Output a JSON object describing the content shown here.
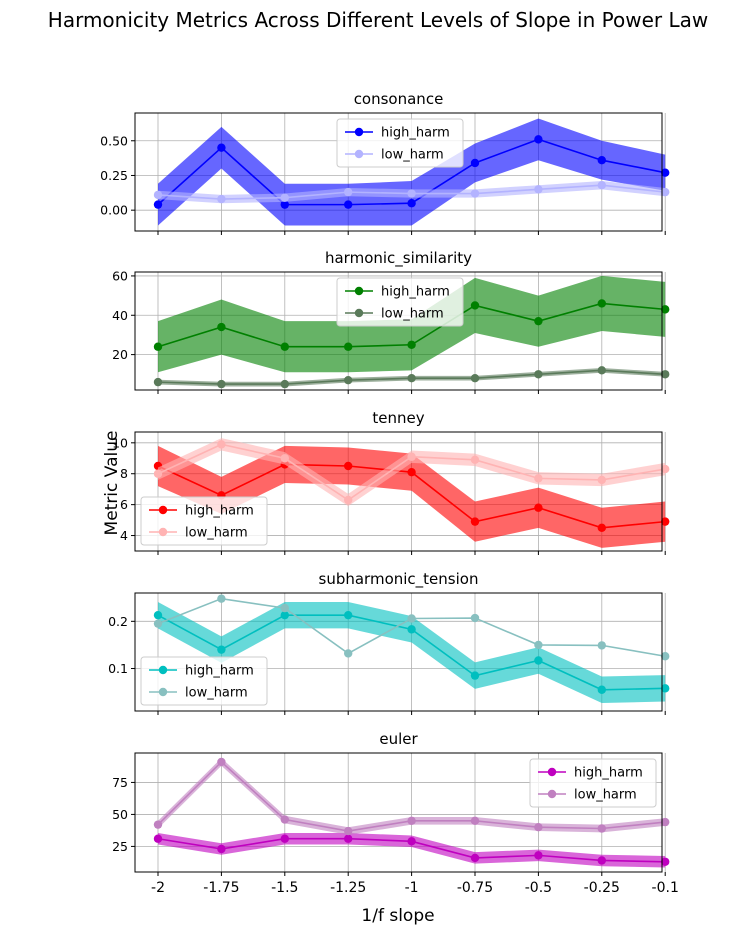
{
  "figure": {
    "title": "Harmonicity Metrics Across Different Levels of Slope in Power Law",
    "ylabel": "Metric Value",
    "xlabel": "1/f slope"
  },
  "chart_data": [
    {
      "type": "line",
      "title": "consonance",
      "categories": [
        "-2",
        "-1.75",
        "-1.5",
        "-1.25",
        "-1",
        "-0.75",
        "-0.5",
        "-0.25",
        "-0.1"
      ],
      "ylim": [
        -0.15,
        0.7
      ],
      "yticks": [
        0.0,
        0.25,
        0.5
      ],
      "ytick_labels": [
        "0.00",
        "0.25",
        "0.50"
      ],
      "grid": true,
      "legend": "top-center",
      "series": [
        {
          "name": "high_harm",
          "color": "#0000ff",
          "fill": "#0000ff",
          "values": [
            0.04,
            0.45,
            0.04,
            0.04,
            0.05,
            0.34,
            0.51,
            0.36,
            0.27
          ],
          "band": [
            0.15,
            0.15,
            0.15,
            0.15,
            0.16,
            0.14,
            0.15,
            0.14,
            0.13
          ]
        },
        {
          "name": "low_harm",
          "color": "#b3b3ff",
          "fill": "#b3b3ff",
          "values": [
            0.11,
            0.08,
            0.09,
            0.13,
            0.12,
            0.12,
            0.15,
            0.18,
            0.13
          ],
          "band": [
            0.03,
            0.03,
            0.03,
            0.03,
            0.03,
            0.03,
            0.03,
            0.03,
            0.03
          ]
        }
      ]
    },
    {
      "type": "line",
      "title": "harmonic_similarity",
      "categories": [
        "-2",
        "-1.75",
        "-1.5",
        "-1.25",
        "-1",
        "-0.75",
        "-0.5",
        "-0.25",
        "-0.1"
      ],
      "ylim": [
        2,
        62
      ],
      "yticks": [
        20,
        40,
        60
      ],
      "ytick_labels": [
        "20",
        "40",
        "60"
      ],
      "grid": true,
      "legend": "top-center",
      "series": [
        {
          "name": "high_harm",
          "color": "#008000",
          "fill": "#008000",
          "values": [
            24,
            34,
            24,
            24,
            25,
            45,
            37,
            46,
            43
          ],
          "band": [
            13,
            14,
            13,
            13,
            13,
            14,
            13,
            14,
            14
          ]
        },
        {
          "name": "low_harm",
          "color": "#5a7a5a",
          "fill": "#5a7a5a",
          "values": [
            6,
            5,
            5,
            7,
            8,
            8,
            10,
            12,
            10
          ],
          "band": [
            1.2,
            1.2,
            1.2,
            1.2,
            1.2,
            1.2,
            1.2,
            1.2,
            1.2
          ]
        }
      ]
    },
    {
      "type": "line",
      "title": "tenney",
      "categories": [
        "-2",
        "-1.75",
        "-1.5",
        "-1.25",
        "-1",
        "-0.75",
        "-0.5",
        "-0.25",
        "-0.1"
      ],
      "ylim": [
        3,
        10.7
      ],
      "yticks": [
        4,
        6,
        8,
        10
      ],
      "ytick_labels": [
        "4",
        "6",
        "8",
        "10"
      ],
      "grid": true,
      "legend": "bottom-left",
      "series": [
        {
          "name": "high_harm",
          "color": "#ff0000",
          "fill": "#ff0000",
          "values": [
            8.5,
            6.6,
            8.6,
            8.5,
            8.1,
            4.9,
            5.8,
            4.5,
            4.9
          ],
          "band": [
            1.3,
            1.2,
            1.2,
            1.2,
            1.2,
            1.3,
            1.3,
            1.3,
            1.3
          ]
        },
        {
          "name": "low_harm",
          "color": "#ffb3b3",
          "fill": "#ffb3b3",
          "values": [
            8.0,
            9.9,
            9.0,
            6.3,
            9.1,
            8.9,
            7.7,
            7.6,
            8.3
          ],
          "band": [
            0.4,
            0.4,
            0.4,
            0.4,
            0.4,
            0.4,
            0.4,
            0.4,
            0.4
          ]
        }
      ]
    },
    {
      "type": "line",
      "title": "subharmonic_tension",
      "categories": [
        "-2",
        "-1.75",
        "-1.5",
        "-1.25",
        "-1",
        "-0.75",
        "-0.5",
        "-0.25",
        "-0.1"
      ],
      "ylim": [
        0.01,
        0.26
      ],
      "yticks": [
        0.1,
        0.2
      ],
      "ytick_labels": [
        "0.1",
        "0.2"
      ],
      "grid": true,
      "legend": "bottom-left",
      "series": [
        {
          "name": "high_harm",
          "color": "#00bfbf",
          "fill": "#00bfbf",
          "values": [
            0.213,
            0.14,
            0.213,
            0.213,
            0.183,
            0.085,
            0.117,
            0.055,
            0.058
          ],
          "band": [
            0.028,
            0.028,
            0.028,
            0.028,
            0.028,
            0.028,
            0.028,
            0.028,
            0.028
          ]
        },
        {
          "name": "low_harm",
          "color": "#88c0c0",
          "fill": "#88c0c0",
          "values": [
            0.195,
            0.248,
            0.228,
            0.132,
            0.206,
            0.207,
            0.15,
            0.149,
            0.126
          ],
          "band": [
            0,
            0,
            0,
            0,
            0,
            0,
            0,
            0,
            0
          ]
        }
      ]
    },
    {
      "type": "line",
      "title": "euler",
      "categories": [
        "-2",
        "-1.75",
        "-1.5",
        "-1.25",
        "-1",
        "-0.75",
        "-0.5",
        "-0.25",
        "-0.1"
      ],
      "ylim": [
        5,
        98
      ],
      "yticks": [
        25,
        50,
        75
      ],
      "ytick_labels": [
        "25",
        "50",
        "75"
      ],
      "grid": true,
      "legend": "top-right",
      "series": [
        {
          "name": "high_harm",
          "color": "#bf00bf",
          "fill": "#bf00bf",
          "values": [
            31,
            23,
            31,
            31,
            29,
            16,
            18,
            14,
            13
          ],
          "band": [
            4.5,
            4.5,
            4.5,
            4.5,
            4.5,
            4.5,
            4.5,
            4.5,
            4.5
          ]
        },
        {
          "name": "low_harm",
          "color": "#c080c0",
          "fill": "#c080c0",
          "values": [
            42,
            91,
            46,
            37,
            45,
            45,
            40,
            39,
            44
          ],
          "band": [
            3,
            3,
            3,
            3,
            3,
            3,
            3,
            3,
            3
          ]
        }
      ]
    }
  ]
}
